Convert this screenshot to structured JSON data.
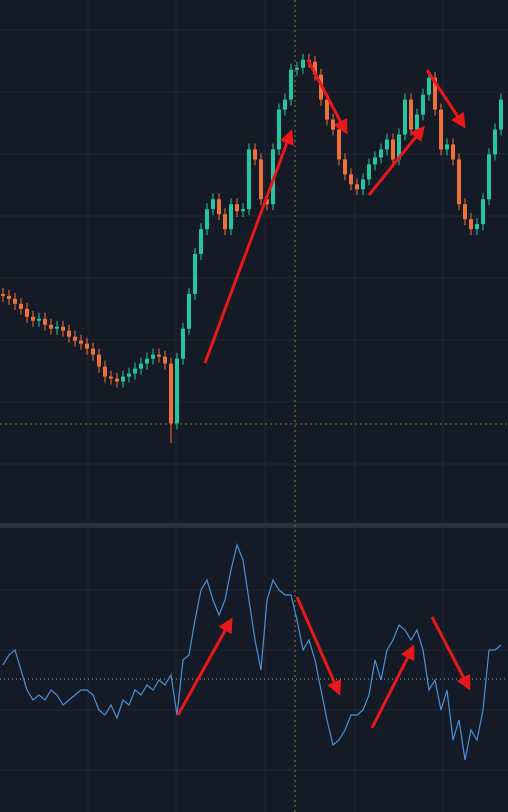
{
  "chart_data": [
    {
      "type": "candlestick",
      "up_color": "#26c6a0",
      "down_color": "#f0703a",
      "ylim": [
        0,
        525
      ],
      "open": [
        230,
        228,
        225,
        220,
        215,
        207,
        203,
        205,
        199,
        195,
        197,
        193,
        187,
        183,
        180,
        175,
        169,
        157,
        147,
        145,
        142,
        147,
        150,
        155,
        160,
        165,
        169,
        167,
        160,
        100,
        165,
        195,
        230,
        270,
        295,
        315,
        325,
        310,
        295,
        320,
        313,
        315,
        375,
        365,
        325,
        320,
        375,
        415,
        425,
        455,
        457,
        465,
        463,
        450,
        425,
        405,
        395,
        365,
        350,
        340,
        335,
        345,
        360,
        367,
        375,
        385,
        365,
        390,
        425,
        395,
        410,
        430,
        447,
        415,
        375,
        380,
        365,
        320,
        305,
        295,
        300,
        325,
        370,
        395
      ],
      "high": [
        236,
        234,
        231,
        226,
        221,
        213,
        211,
        211,
        205,
        203,
        203,
        199,
        193,
        189,
        186,
        181,
        175,
        163,
        153,
        151,
        153,
        156,
        161,
        166,
        171,
        175,
        175,
        173,
        166,
        171,
        201,
        236,
        276,
        301,
        321,
        331,
        331,
        316,
        326,
        326,
        321,
        381,
        381,
        371,
        331,
        381,
        421,
        431,
        461,
        463,
        471,
        471,
        469,
        456,
        431,
        411,
        401,
        371,
        356,
        346,
        351,
        366,
        373,
        381,
        391,
        391,
        396,
        431,
        431,
        416,
        436,
        453,
        453,
        421,
        386,
        386,
        371,
        326,
        311,
        306,
        331,
        376,
        401,
        431
      ],
      "low": [
        222,
        219,
        214,
        209,
        201,
        197,
        197,
        193,
        189,
        189,
        187,
        181,
        177,
        174,
        169,
        163,
        151,
        141,
        139,
        136,
        136,
        141,
        144,
        149,
        154,
        159,
        161,
        154,
        80,
        94,
        159,
        189,
        224,
        264,
        289,
        309,
        304,
        289,
        289,
        307,
        307,
        309,
        359,
        319,
        314,
        314,
        369,
        409,
        419,
        449,
        451,
        457,
        444,
        419,
        399,
        389,
        359,
        344,
        334,
        329,
        329,
        339,
        354,
        361,
        369,
        359,
        359,
        384,
        389,
        389,
        404,
        424,
        409,
        369,
        369,
        359,
        314,
        299,
        289,
        289,
        294,
        319,
        364,
        389
      ],
      "close": [
        228,
        225,
        220,
        215,
        207,
        203,
        205,
        199,
        195,
        197,
        193,
        187,
        183,
        180,
        175,
        169,
        157,
        147,
        145,
        142,
        147,
        150,
        155,
        160,
        165,
        169,
        167,
        160,
        100,
        165,
        195,
        230,
        270,
        295,
        315,
        325,
        310,
        295,
        320,
        313,
        315,
        375,
        365,
        325,
        320,
        375,
        415,
        425,
        455,
        457,
        465,
        463,
        450,
        425,
        405,
        395,
        365,
        350,
        340,
        335,
        345,
        360,
        367,
        375,
        385,
        365,
        390,
        425,
        395,
        410,
        430,
        447,
        415,
        375,
        380,
        365,
        320,
        305,
        295,
        300,
        325,
        370,
        395,
        425
      ]
    },
    {
      "type": "line",
      "color": "#4a90d9",
      "ylim": [
        0,
        282
      ],
      "values": [
        147,
        157,
        162,
        142,
        122,
        112,
        117,
        112,
        122,
        117,
        107,
        112,
        117,
        122,
        122,
        117,
        102,
        97,
        107,
        94,
        112,
        107,
        122,
        117,
        127,
        122,
        132,
        127,
        137,
        97,
        152,
        157,
        192,
        222,
        232,
        212,
        197,
        212,
        242,
        267,
        252,
        212,
        172,
        142,
        212,
        232,
        222,
        217,
        217,
        192,
        162,
        172,
        152,
        122,
        92,
        67,
        72,
        82,
        97,
        97,
        102,
        117,
        152,
        132,
        162,
        172,
        187,
        182,
        172,
        182,
        162,
        122,
        132,
        102,
        122,
        72,
        92,
        52,
        82,
        72,
        102,
        162,
        162,
        167
      ]
    }
  ]
}
